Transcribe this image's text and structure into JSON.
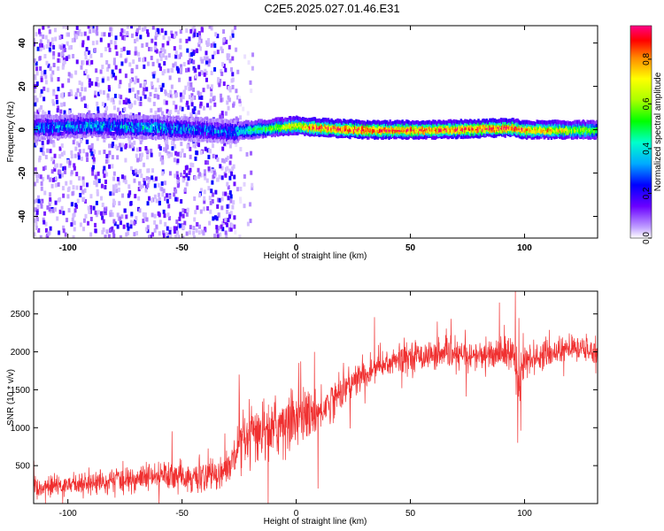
{
  "title": "C2E5.2025.027.01.46.E31",
  "chart_data": [
    {
      "type": "heatmap",
      "title": "C2E5.2025.027.01.46.E31",
      "xlabel": "Height of straight line (km)",
      "ylabel": "Frequency (Hz)",
      "xlim": [
        -115,
        132
      ],
      "ylim": [
        -50,
        48
      ],
      "xticks": [
        -100,
        -50,
        0,
        50,
        100
      ],
      "yticks": [
        -40,
        -20,
        0,
        20,
        40
      ],
      "colorbar": {
        "label": "Normalized spectral amplitude",
        "range": [
          0.0,
          0.95
        ],
        "ticks": [
          0.0,
          0.2,
          0.4,
          0.6,
          0.8
        ],
        "colormap": "rainbow"
      },
      "profile": {
        "description_points_height_km": [
          -115,
          -90,
          -60,
          -40,
          -30,
          -20,
          -10,
          0,
          10,
          30,
          60,
          95,
          100,
          132
        ],
        "center_frequency_hz": [
          1,
          2,
          1,
          0,
          -1,
          0,
          1,
          2,
          1,
          0,
          0,
          1,
          0,
          0
        ],
        "peak_amplitude": [
          0.3,
          0.35,
          0.35,
          0.3,
          0.3,
          0.5,
          0.6,
          0.8,
          0.9,
          0.95,
          0.9,
          0.95,
          0.9,
          0.6
        ],
        "noise_extent_km": [
          -115,
          -27
        ]
      }
    },
    {
      "type": "line",
      "xlabel": "Height of straight line (km)",
      "ylabel": "SNR (10 * v/v)",
      "xlim": [
        -115,
        132
      ],
      "ylim": [
        0,
        2800
      ],
      "xticks": [
        -100,
        -50,
        0,
        50,
        100
      ],
      "yticks": [
        500,
        1000,
        1500,
        2000,
        2500
      ],
      "color": "#f03030",
      "trend": {
        "x": [
          -115,
          -100,
          -80,
          -60,
          -40,
          -30,
          -25,
          -20,
          -10,
          0,
          10,
          20,
          30,
          40,
          50,
          60,
          80,
          95,
          97,
          100,
          120,
          132
        ],
        "y": [
          200,
          250,
          300,
          350,
          350,
          450,
          700,
          900,
          1000,
          1150,
          1200,
          1500,
          1700,
          1850,
          1950,
          1950,
          1950,
          2000,
          1500,
          1900,
          2050,
          2000
        ],
        "noise": [
          120,
          130,
          150,
          170,
          180,
          200,
          280,
          330,
          380,
          350,
          250,
          220,
          200,
          190,
          180,
          170,
          170,
          200,
          500,
          180,
          160,
          150
        ]
      },
      "spikes": [
        {
          "x": 96,
          "y": 2800
        },
        {
          "x": 97,
          "y": 800
        },
        {
          "x": 89,
          "y": 2650
        },
        {
          "x": 8,
          "y": 2000
        },
        {
          "x": -25,
          "y": 1700
        }
      ]
    }
  ]
}
